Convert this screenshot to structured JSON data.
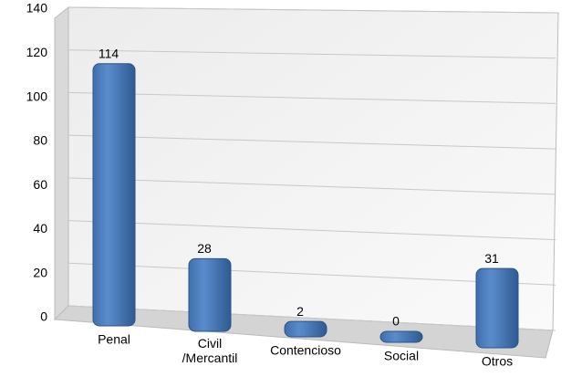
{
  "chart_data": {
    "type": "bar",
    "categories": [
      "Penal",
      "Civil\n/Mercantil",
      "Contencioso",
      "Social",
      "Otros"
    ],
    "values": [
      114,
      28,
      2,
      0,
      31
    ],
    "color": "#4f81bd",
    "ylim": [
      0,
      140
    ],
    "yticks": [
      0,
      20,
      40,
      60,
      80,
      100,
      120,
      140
    ],
    "grid": true
  }
}
